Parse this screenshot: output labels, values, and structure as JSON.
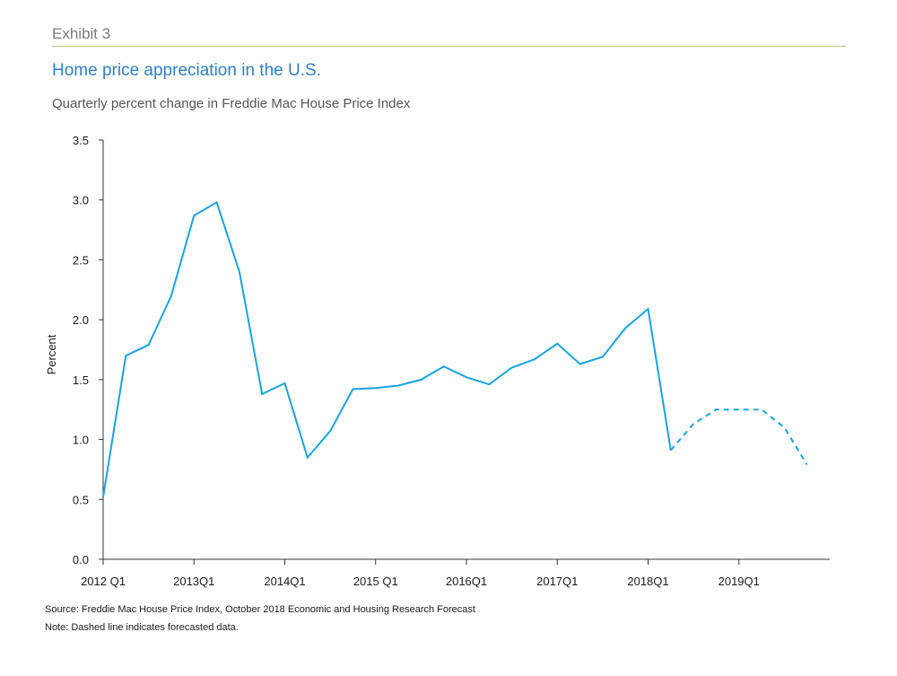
{
  "header": {
    "exhibit": "Exhibit 3",
    "title": "Home price appreciation in the U.S.",
    "subtitle": "Quarterly percent change in Freddie Mac House Price Index"
  },
  "footnotes": {
    "source": "Source: Freddie Mac House Price Index, October 2018 Economic and Housing Research Forecast",
    "note": "Note: Dashed line indicates forecasted data."
  },
  "colors": {
    "line": "#1aa3dc",
    "axis": "#333333",
    "rule": "#b9c98a",
    "title": "#2f7fc1"
  },
  "chart_data": {
    "type": "line",
    "ylabel": "Percent",
    "xlabel": "",
    "ylim": [
      0,
      3.5
    ],
    "yticks": [
      "0.0",
      "0.5",
      "1.0",
      "1.5",
      "2.0",
      "2.5",
      "3.0",
      "3.5"
    ],
    "xtick_labels": [
      "2012 Q1",
      "2013Q1",
      "2014Q1",
      "2015 Q1",
      "2016Q1",
      "2017Q1",
      "2018Q1",
      "2019Q1"
    ],
    "x": [
      "2012Q1",
      "2012Q2",
      "2012Q3",
      "2012Q4",
      "2013Q1",
      "2013Q2",
      "2013Q3",
      "2013Q4",
      "2014Q1",
      "2014Q2",
      "2014Q3",
      "2014Q4",
      "2015Q1",
      "2015Q2",
      "2015Q3",
      "2015Q4",
      "2016Q1",
      "2016Q2",
      "2016Q3",
      "2016Q4",
      "2017Q1",
      "2017Q2",
      "2017Q3",
      "2017Q4",
      "2018Q1",
      "2018Q2",
      "2018Q3",
      "2018Q4",
      "2019Q1",
      "2019Q2",
      "2019Q3",
      "2019Q4"
    ],
    "series": [
      {
        "style": "solid",
        "values": [
          0.52,
          1.7,
          1.79,
          2.2,
          2.87,
          2.98,
          2.4,
          1.38,
          1.47,
          0.85,
          1.07,
          1.42,
          1.43,
          1.45,
          1.5,
          1.61,
          1.52,
          1.46,
          1.6,
          1.67,
          1.8,
          1.63,
          1.69,
          1.93,
          2.09,
          0.91,
          null,
          null,
          null,
          null,
          null,
          null
        ]
      },
      {
        "style": "dashed",
        "values": [
          null,
          null,
          null,
          null,
          null,
          null,
          null,
          null,
          null,
          null,
          null,
          null,
          null,
          null,
          null,
          null,
          null,
          null,
          null,
          null,
          null,
          null,
          null,
          null,
          null,
          0.91,
          1.13,
          1.25,
          1.25,
          1.25,
          1.1,
          0.79
        ]
      }
    ]
  }
}
